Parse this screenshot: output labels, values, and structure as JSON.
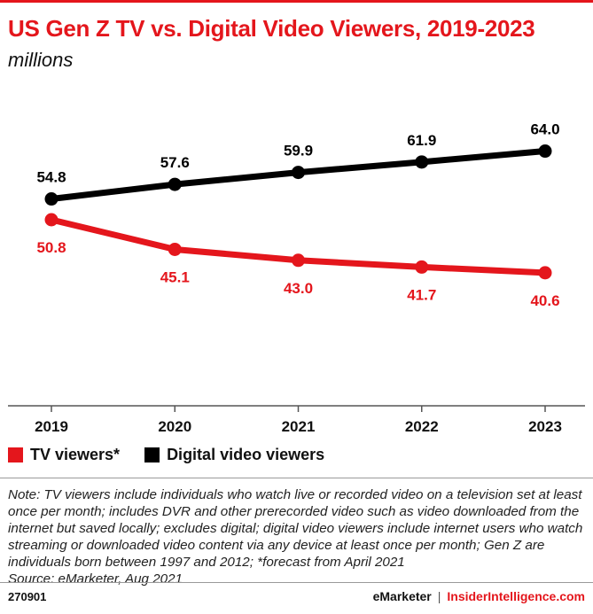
{
  "header": {
    "title": "US Gen Z TV vs. Digital Video Viewers, 2019-2023",
    "subtitle": "millions"
  },
  "colors": {
    "brand_red": "#e4161c",
    "black": "#000000",
    "axis": "#555555"
  },
  "chart_data": {
    "type": "line",
    "title": "US Gen Z TV vs. Digital Video Viewers, 2019-2023",
    "subtitle": "millions",
    "x": [
      "2019",
      "2020",
      "2021",
      "2022",
      "2023"
    ],
    "series": [
      {
        "name": "TV viewers*",
        "color": "#e4161c",
        "values": [
          50.8,
          45.1,
          43.0,
          41.7,
          40.6
        ],
        "labels": [
          "50.8",
          "45.1",
          "43.0",
          "41.7",
          "40.6"
        ]
      },
      {
        "name": "Digital video viewers",
        "color": "#000000",
        "values": [
          54.8,
          57.6,
          59.9,
          61.9,
          64.0
        ],
        "labels": [
          "54.8",
          "57.6",
          "59.9",
          "61.9",
          "64.0"
        ]
      }
    ],
    "grid": false,
    "legend_position": "bottom-left"
  },
  "legend": {
    "items": [
      "TV viewers*",
      "Digital video viewers"
    ]
  },
  "note": {
    "text": "Note: TV viewers include individuals who watch live or recorded video on a television set at least once per month; includes DVR and other prerecorded video such as video downloaded from the internet but saved locally; excludes digital; digital video viewers include internet users who watch streaming or downloaded video content via any device at least once per month; Gen Z are individuals born between 1997 and 2012; *forecast from April 2021",
    "source": "Source: eMarketer, Aug 2021"
  },
  "footer": {
    "chart_id": "270901",
    "brand": "eMarketer",
    "separator": "|",
    "site": "InsiderIntelligence.com"
  }
}
